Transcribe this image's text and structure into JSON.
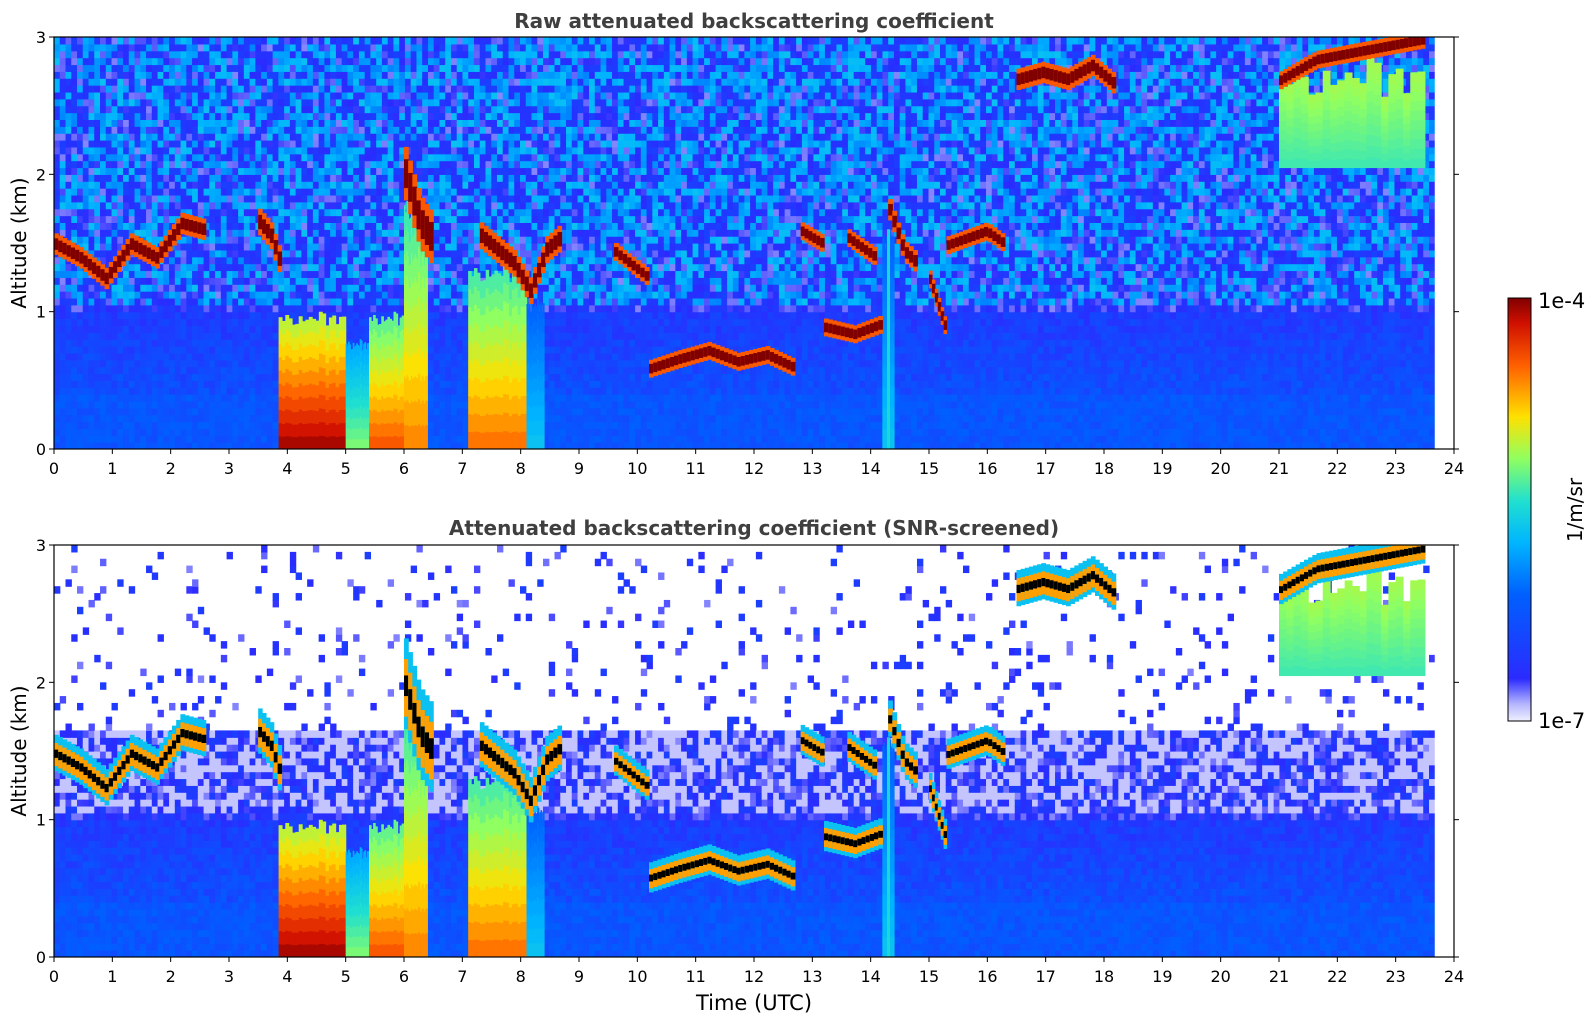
{
  "chart_data": [
    {
      "type": "heatmap",
      "title": "Raw attenuated backscattering coefficient",
      "xlabel": "",
      "ylabel": "Altitude (km)",
      "xlim": [
        0,
        24
      ],
      "ylim": [
        0,
        3
      ],
      "xticks": [
        "0",
        "1",
        "2",
        "3",
        "4",
        "5",
        "6",
        "7",
        "8",
        "9",
        "10",
        "11",
        "12",
        "13",
        "14",
        "15",
        "16",
        "17",
        "18",
        "19",
        "20",
        "21",
        "22",
        "23",
        "24"
      ],
      "yticks": [
        "0",
        "1",
        "2",
        "3"
      ],
      "data_end_hour": 23.67,
      "screened": false,
      "cloud_layers": [
        {
          "t0": 0.0,
          "t1": 2.6,
          "alt": [
            1.45,
            1.35,
            1.2,
            1.45,
            1.35,
            1.6,
            1.55
          ],
          "thick": 0.12
        },
        {
          "t0": 3.5,
          "t1": 3.9,
          "alt": [
            1.6,
            1.5,
            1.25
          ],
          "thick": 0.15
        },
        {
          "t0": 6.0,
          "t1": 6.5,
          "alt": [
            1.9,
            1.55,
            1.4
          ],
          "thick": 0.3
        },
        {
          "t0": 7.3,
          "t1": 8.7,
          "alt": [
            1.5,
            1.4,
            1.3,
            1.1,
            1.4,
            1.5
          ],
          "thick": 0.15
        },
        {
          "t0": 9.6,
          "t1": 10.2,
          "alt": [
            1.4,
            1.3,
            1.2
          ],
          "thick": 0.1
        },
        {
          "t0": 10.2,
          "t1": 12.7,
          "alt": [
            0.55,
            0.62,
            0.68,
            0.6,
            0.65,
            0.55
          ],
          "thick": 0.1
        },
        {
          "t0": 12.8,
          "t1": 13.2,
          "alt": [
            1.55,
            1.45
          ],
          "thick": 0.1
        },
        {
          "t0": 13.2,
          "t1": 14.2,
          "alt": [
            0.85,
            0.8,
            0.88
          ],
          "thick": 0.1
        },
        {
          "t0": 13.6,
          "t1": 14.1,
          "alt": [
            1.5,
            1.35
          ],
          "thick": 0.1
        },
        {
          "t0": 14.3,
          "t1": 14.8,
          "alt": [
            1.7,
            1.4,
            1.3
          ],
          "thick": 0.12
        },
        {
          "t0": 15.0,
          "t1": 15.3,
          "alt": [
            1.2,
            0.8
          ],
          "thick": 0.1
        },
        {
          "t0": 15.3,
          "t1": 16.3,
          "alt": [
            1.45,
            1.5,
            1.55,
            1.45
          ],
          "thick": 0.1
        },
        {
          "t0": 16.5,
          "t1": 18.2,
          "alt": [
            2.65,
            2.7,
            2.65,
            2.75,
            2.6
          ],
          "thick": 0.12
        },
        {
          "t0": 21.0,
          "t1": 23.5,
          "alt": [
            2.65,
            2.8,
            2.85,
            2.9,
            2.95
          ],
          "thick": 0.1
        }
      ],
      "deep_features": [
        {
          "t0": 3.85,
          "t1": 5.0,
          "top": 1.0,
          "level": 0.97
        },
        {
          "t0": 5.0,
          "t1": 5.4,
          "top": 0.8,
          "level": 0.6
        },
        {
          "t0": 5.4,
          "t1": 6.1,
          "top": 1.0,
          "level": 0.85
        },
        {
          "t0": 6.0,
          "t1": 6.4,
          "top": 1.85,
          "level": 0.8
        },
        {
          "t0": 7.1,
          "t1": 8.1,
          "top": 1.35,
          "level": 0.82
        },
        {
          "t0": 8.1,
          "t1": 8.4,
          "top": 1.1,
          "level": 0.45
        },
        {
          "t0": 14.2,
          "t1": 14.4,
          "top": 1.6,
          "level": 0.45
        },
        {
          "t0": 21.0,
          "t1": 23.5,
          "top": 2.85,
          "bottom": 2.05,
          "level": 0.55
        }
      ]
    },
    {
      "type": "heatmap",
      "title": "Attenuated backscattering coefficient (SNR-screened)",
      "xlabel": "Time (UTC)",
      "ylabel": "Altitude (km)",
      "xlim": [
        0,
        24
      ],
      "ylim": [
        0,
        3
      ],
      "xticks": [
        "0",
        "1",
        "2",
        "3",
        "4",
        "5",
        "6",
        "7",
        "8",
        "9",
        "10",
        "11",
        "12",
        "13",
        "14",
        "15",
        "16",
        "17",
        "18",
        "19",
        "20",
        "21",
        "22",
        "23",
        "24"
      ],
      "yticks": [
        "0",
        "1",
        "2",
        "3"
      ],
      "data_end_hour": 23.67,
      "screened": true
    }
  ],
  "colorbar": {
    "label": "1/m/sr",
    "max_label": "1e-4",
    "min_label": "1e-7",
    "scale": "log",
    "colormap": "jet"
  },
  "colors": {
    "title_text": "#3f3f3f",
    "axis": "#000000",
    "background": "#ffffff",
    "screened_cloud_core": "#000000"
  }
}
